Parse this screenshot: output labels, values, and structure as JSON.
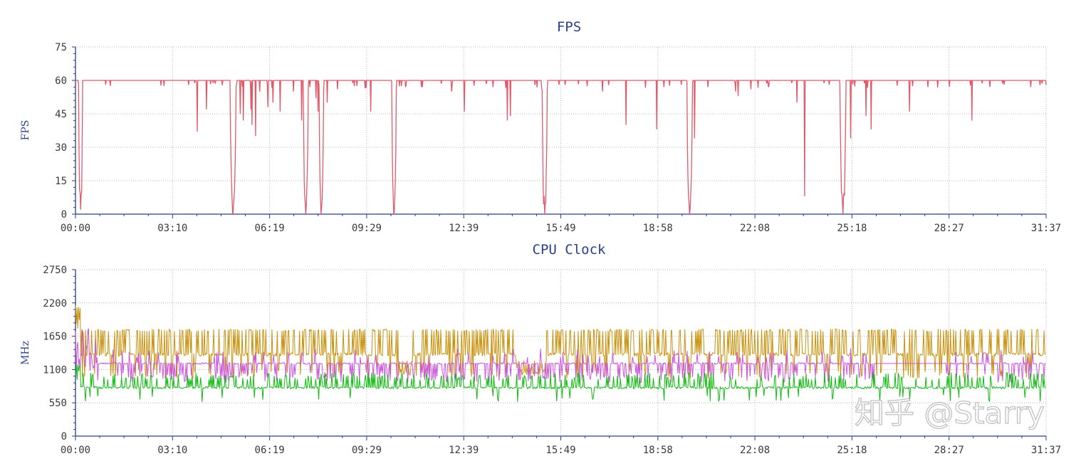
{
  "watermark": "知乎 @Starry",
  "chart_data": [
    {
      "type": "line",
      "title": "FPS",
      "ylabel": "FPS",
      "xlabel": "",
      "ylim": [
        0,
        75
      ],
      "yticks": [
        0,
        15,
        30,
        45,
        60,
        75
      ],
      "x_range_seconds": [
        0,
        1897
      ],
      "xticks": [
        "00:00",
        "03:10",
        "06:19",
        "09:29",
        "12:39",
        "15:49",
        "18:58",
        "22:08",
        "25:18",
        "28:27",
        "31:37"
      ],
      "grid": true,
      "colors": {
        "fps": "#e05a6a"
      },
      "baseline": 60,
      "deep_drops": [
        {
          "t": 10,
          "min": 2,
          "w": 8
        },
        {
          "t": 308,
          "min": 0,
          "w": 12
        },
        {
          "t": 450,
          "min": 0,
          "w": 10
        },
        {
          "t": 480,
          "min": 0,
          "w": 9
        },
        {
          "t": 622,
          "min": 0,
          "w": 9
        },
        {
          "t": 917,
          "min": 0,
          "w": 10
        },
        {
          "t": 1200,
          "min": 0,
          "w": 11
        },
        {
          "t": 1500,
          "min": 0,
          "w": 12
        }
      ],
      "spikes": [
        {
          "t": 238,
          "min": 37
        },
        {
          "t": 256,
          "min": 47
        },
        {
          "t": 322,
          "min": 45
        },
        {
          "t": 328,
          "min": 42
        },
        {
          "t": 343,
          "min": 47
        },
        {
          "t": 345,
          "min": 40
        },
        {
          "t": 352,
          "min": 35
        },
        {
          "t": 360,
          "min": 55
        },
        {
          "t": 376,
          "min": 48
        },
        {
          "t": 386,
          "min": 50
        },
        {
          "t": 400,
          "min": 46
        },
        {
          "t": 426,
          "min": 55
        },
        {
          "t": 442,
          "min": 42
        },
        {
          "t": 446,
          "min": 40
        },
        {
          "t": 458,
          "min": 57
        },
        {
          "t": 470,
          "min": 52
        },
        {
          "t": 474,
          "min": 46
        },
        {
          "t": 492,
          "min": 50
        },
        {
          "t": 512,
          "min": 56
        },
        {
          "t": 577,
          "min": 46
        },
        {
          "t": 645,
          "min": 57
        },
        {
          "t": 678,
          "min": 57
        },
        {
          "t": 735,
          "min": 55
        },
        {
          "t": 760,
          "min": 46
        },
        {
          "t": 844,
          "min": 42
        },
        {
          "t": 850,
          "min": 44
        },
        {
          "t": 957,
          "min": 58
        },
        {
          "t": 1030,
          "min": 55
        },
        {
          "t": 1076,
          "min": 40
        },
        {
          "t": 1136,
          "min": 38
        },
        {
          "t": 1150,
          "min": 57
        },
        {
          "t": 1210,
          "min": 34
        },
        {
          "t": 1236,
          "min": 57
        },
        {
          "t": 1290,
          "min": 55
        },
        {
          "t": 1295,
          "min": 53
        },
        {
          "t": 1320,
          "min": 56
        },
        {
          "t": 1355,
          "min": 57
        },
        {
          "t": 1410,
          "min": 50
        },
        {
          "t": 1425,
          "min": 8
        },
        {
          "t": 1515,
          "min": 34
        },
        {
          "t": 1545,
          "min": 44
        },
        {
          "t": 1555,
          "min": 38
        },
        {
          "t": 1630,
          "min": 46
        },
        {
          "t": 1752,
          "min": 42
        },
        {
          "t": 1867,
          "min": 57
        }
      ]
    },
    {
      "type": "line",
      "title": "CPU Clock",
      "ylabel": "MHz",
      "xlabel": "",
      "ylim": [
        0,
        2750
      ],
      "yticks": [
        0,
        550,
        1100,
        1650,
        2200,
        2750
      ],
      "x_range_seconds": [
        0,
        1897
      ],
      "xticks": [
        "00:00",
        "03:10",
        "06:19",
        "09:29",
        "12:39",
        "15:49",
        "18:58",
        "22:08",
        "25:18",
        "28:27",
        "31:37"
      ],
      "grid": true,
      "series": [
        {
          "color": "#c9920e",
          "base": 1350,
          "high": 1770,
          "low": 950,
          "peak": 2180
        },
        {
          "color": "#cc55dd",
          "base": 1200,
          "high": 1280,
          "low": 880,
          "peak": 1800
        },
        {
          "color": "#11bb11",
          "base": 800,
          "high": 1050,
          "low": 560,
          "peak": 1250
        }
      ]
    }
  ]
}
